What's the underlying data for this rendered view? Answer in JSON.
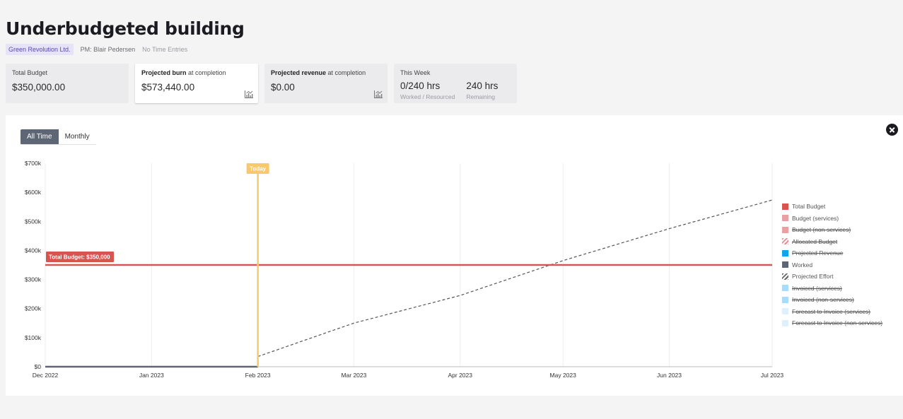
{
  "header": {
    "title": "Underbudgeted building",
    "client": "Green Revolution Ltd.",
    "pm": "PM: Blair Pedersen",
    "time_entries": "No Time Entries"
  },
  "cards": {
    "total_budget": {
      "title": "Total Budget",
      "value": "$350,000.00"
    },
    "projected_burn": {
      "title_bold": "Projected burn",
      "title_rest": " at completion",
      "value": "$573,440.00",
      "icon": "chart-icon"
    },
    "projected_revenue": {
      "title_bold": "Projected revenue",
      "title_rest": " at completion",
      "value": "$0.00",
      "icon": "chart-icon"
    },
    "this_week": {
      "title": "This Week",
      "worked_value": "0/240 hrs",
      "worked_label": "Worked / Resourced",
      "remaining_value": "240 hrs",
      "remaining_label": "Remaining"
    }
  },
  "toggle": {
    "all_time": "All Time",
    "monthly": "Monthly",
    "selected": "All Time"
  },
  "close_icon": "close-icon",
  "chart_data": {
    "type": "line",
    "x_ticks": [
      "Dec 2022",
      "Jan 2023",
      "Feb 2023",
      "Mar 2023",
      "Apr 2023",
      "May 2023",
      "Jun 2023",
      "Jul 2023"
    ],
    "y_ticks": [
      "$0",
      "$100k",
      "$200k",
      "$300k",
      "$400k",
      "$500k",
      "$600k",
      "$700k"
    ],
    "ylim": [
      0,
      700000
    ],
    "xlim": [
      "2022-12-01",
      "2023-07-01"
    ],
    "grid": "vertical",
    "today": {
      "label": "Today",
      "x": "2023-02-01",
      "color": "#f7c96a"
    },
    "total_budget_line": {
      "label": "Total Budget: $350,000",
      "value": 350000,
      "color": "#d9534f"
    },
    "worked": {
      "name": "Worked",
      "color": "#5d6674",
      "x": [
        "2022-12-01",
        "2023-02-01"
      ],
      "y": [
        0,
        0
      ]
    },
    "projected_effort": {
      "name": "Projected Effort",
      "color": "#555555",
      "x": [
        "2023-02-01",
        "2023-03-01",
        "2023-04-01",
        "2023-05-01",
        "2023-06-01",
        "2023-07-01"
      ],
      "y": [
        35000,
        150000,
        245000,
        365000,
        475000,
        573440
      ]
    },
    "legend": [
      {
        "label": "Total Budget",
        "color": "#d9534f",
        "active": true,
        "pattern": "solid"
      },
      {
        "label": "Budget (services)",
        "color": "#e9a0a3",
        "active": true,
        "pattern": "solid"
      },
      {
        "label": "Budget (non-services)",
        "color": "#e9a0a3",
        "active": false,
        "pattern": "solid"
      },
      {
        "label": "Allocated Budget",
        "color": "#e88c93",
        "active": false,
        "pattern": "hatched"
      },
      {
        "label": "Projected Revenue",
        "color": "#12a3ef",
        "active": false,
        "pattern": "solid"
      },
      {
        "label": "Worked",
        "color": "#5d6674",
        "active": true,
        "pattern": "solid"
      },
      {
        "label": "Projected Effort",
        "color": "#666666",
        "active": true,
        "pattern": "hatched"
      },
      {
        "label": "Invoiced (services)",
        "color": "#a9dcfb",
        "active": false,
        "pattern": "solid"
      },
      {
        "label": "Invoiced (non-services)",
        "color": "#a9dcfb",
        "active": false,
        "pattern": "solid"
      },
      {
        "label": "Forecast to Invoice (services)",
        "color": "#ddf0fc",
        "active": false,
        "pattern": "solid"
      },
      {
        "label": "Forecast to Invoice (non-services)",
        "color": "#ddf0fc",
        "active": false,
        "pattern": "solid"
      }
    ],
    "legend_position": "right"
  }
}
